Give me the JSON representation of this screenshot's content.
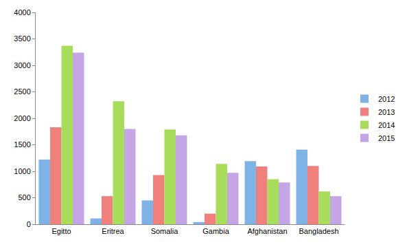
{
  "chart_data": {
    "type": "bar",
    "categories": [
      "Egitto",
      "Eritrea",
      "Somalia",
      "Gambia",
      "Afghanistan",
      "Bangladesh"
    ],
    "series": [
      {
        "name": "2012",
        "color": "#7fb3e6",
        "values": [
          1220,
          110,
          450,
          40,
          1190,
          1410
        ]
      },
      {
        "name": "2013",
        "color": "#f0807c",
        "values": [
          1830,
          530,
          930,
          200,
          1090,
          1100
        ]
      },
      {
        "name": "2014",
        "color": "#a8dd5c",
        "values": [
          3370,
          2320,
          1790,
          1140,
          850,
          620
        ]
      },
      {
        "name": "2015",
        "color": "#c4a6e6",
        "values": [
          3240,
          1800,
          1680,
          970,
          790,
          530
        ]
      }
    ],
    "ylim": [
      0,
      4000
    ],
    "yticks": [
      0,
      500,
      1000,
      1500,
      2000,
      2500,
      3000,
      3500,
      4000
    ],
    "grid": false,
    "legend": "right"
  }
}
